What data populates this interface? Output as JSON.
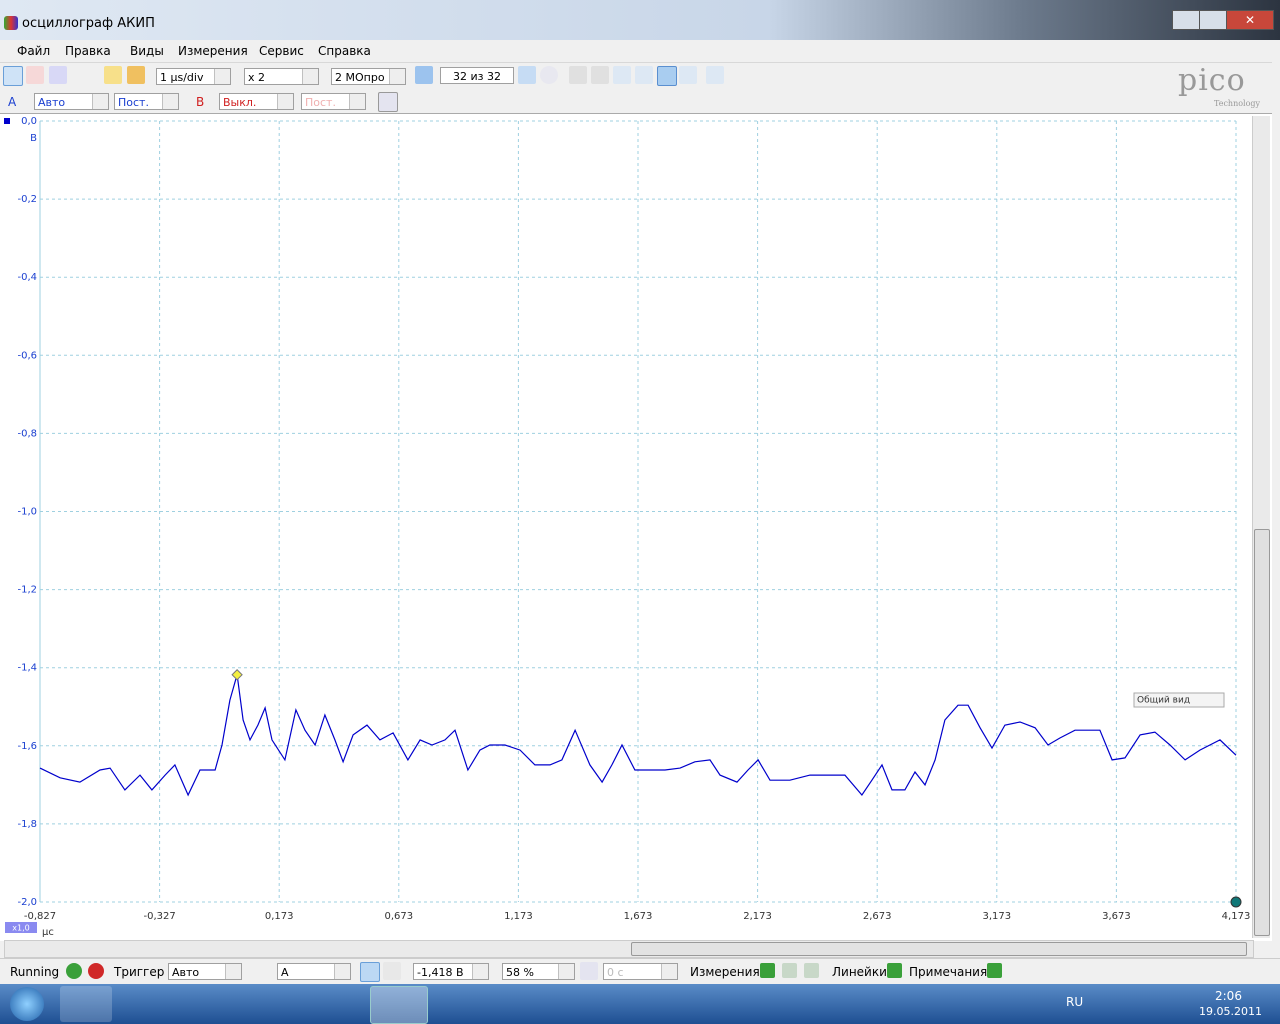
{
  "window": {
    "title": "осциллограф АКИП"
  },
  "menu": [
    "Файл",
    "Правка",
    "Виды",
    "Измерения",
    "Сервис",
    "Справка"
  ],
  "toolbar": {
    "timebase": "1 µs/div",
    "zoom": "x 2",
    "samples": "2 МОпро",
    "buffer": "32 из 32",
    "channel_a": "A",
    "range_a": "Авто",
    "coupling_a": "Пост.",
    "channel_b": "B",
    "range_b": "Выкл.",
    "coupling_b": "Пост.",
    "logo": "pico",
    "logo_sub": "Technology"
  },
  "chart_data": {
    "type": "line",
    "color": "#0000cc",
    "grid": true,
    "x": [
      -0.827,
      -0.743,
      -0.66,
      -0.576,
      -0.534,
      -0.472,
      -0.409,
      -0.359,
      -0.304,
      -0.263,
      -0.208,
      -0.158,
      -0.095,
      -0.066,
      -0.033,
      -0.003,
      0.022,
      0.051,
      0.084,
      0.114,
      0.143,
      0.197,
      0.243,
      0.281,
      0.323,
      0.364,
      0.406,
      0.44,
      0.482,
      0.54,
      0.594,
      0.649,
      0.711,
      0.762,
      0.812,
      0.866,
      0.908,
      0.962,
      1.012,
      1.054,
      1.117,
      1.18,
      1.242,
      1.305,
      1.355,
      1.41,
      1.472,
      1.523,
      1.564,
      1.606,
      1.66,
      1.723,
      1.786,
      1.849,
      1.911,
      1.974,
      2.016,
      2.087,
      2.133,
      2.175,
      2.225,
      2.308,
      2.392,
      2.455,
      2.538,
      2.609,
      2.651,
      2.693,
      2.735,
      2.789,
      2.831,
      2.873,
      2.915,
      2.956,
      3.011,
      3.053,
      3.103,
      3.153,
      3.207,
      3.27,
      3.333,
      3.387,
      3.437,
      3.5,
      3.604,
      3.655,
      3.709,
      3.772,
      3.834,
      3.897,
      3.96,
      4.022,
      4.106,
      4.173
    ],
    "values": [
      -1.657,
      -1.682,
      -1.693,
      -1.662,
      -1.657,
      -1.713,
      -1.675,
      -1.713,
      -1.675,
      -1.649,
      -1.726,
      -1.662,
      -1.662,
      -1.598,
      -1.483,
      -1.418,
      -1.534,
      -1.585,
      -1.547,
      -1.503,
      -1.585,
      -1.636,
      -1.508,
      -1.56,
      -1.598,
      -1.521,
      -1.585,
      -1.641,
      -1.572,
      -1.547,
      -1.585,
      -1.567,
      -1.636,
      -1.585,
      -1.598,
      -1.585,
      -1.56,
      -1.662,
      -1.611,
      -1.598,
      -1.598,
      -1.611,
      -1.649,
      -1.649,
      -1.636,
      -1.56,
      -1.649,
      -1.693,
      -1.649,
      -1.598,
      -1.662,
      -1.662,
      -1.662,
      -1.657,
      -1.641,
      -1.636,
      -1.675,
      -1.693,
      -1.662,
      -1.636,
      -1.688,
      -1.688,
      -1.675,
      -1.675,
      -1.675,
      -1.726,
      -1.688,
      -1.649,
      -1.713,
      -1.713,
      -1.667,
      -1.7,
      -1.636,
      -1.534,
      -1.496,
      -1.496,
      -1.554,
      -1.606,
      -1.547,
      -1.539,
      -1.554,
      -1.598,
      -1.58,
      -1.56,
      -1.56,
      -1.636,
      -1.631,
      -1.572,
      -1.565,
      -1.598,
      -1.636,
      -1.611,
      -1.585,
      -1.624
    ],
    "marker_index": 15,
    "xlim": [
      -0.827,
      4.173
    ],
    "ylim": [
      -2.0,
      0.0
    ],
    "xticks": [
      {
        "value": -0.827,
        "label": "-0,827"
      },
      {
        "value": -0.327,
        "label": "-0,327"
      },
      {
        "value": 0.173,
        "label": "0,173"
      },
      {
        "value": 0.673,
        "label": "0,673"
      },
      {
        "value": 1.173,
        "label": "1,173"
      },
      {
        "value": 1.673,
        "label": "1,673"
      },
      {
        "value": 2.173,
        "label": "2,173"
      },
      {
        "value": 2.673,
        "label": "2,673"
      },
      {
        "value": 3.173,
        "label": "3,173"
      },
      {
        "value": 3.673,
        "label": "3,673"
      },
      {
        "value": 4.173,
        "label": "4,173"
      }
    ],
    "yticks": [
      {
        "value": 0.0,
        "label": "0,0"
      },
      {
        "value": -0.2,
        "label": "-0,2"
      },
      {
        "value": -0.4,
        "label": "-0,4"
      },
      {
        "value": -0.6,
        "label": "-0,6"
      },
      {
        "value": -0.8,
        "label": "-0,8"
      },
      {
        "value": -1.0,
        "label": "-1,0"
      },
      {
        "value": -1.2,
        "label": "-1,2"
      },
      {
        "value": -1.4,
        "label": "-1,4"
      },
      {
        "value": -1.6,
        "label": "-1,6"
      },
      {
        "value": -1.8,
        "label": "-1,8"
      },
      {
        "value": -2.0,
        "label": "-2,0"
      }
    ],
    "x_unit": "μс",
    "y_unit": "В",
    "x_scale": "x1,0",
    "overview": "Общий вид"
  },
  "statusbar": {
    "state": "Running",
    "trigger_label": "Триггер",
    "trigger_mode": "Авто",
    "trigger_channel": "A",
    "trigger_level": "-1,418 В",
    "pretrigger": "58 %",
    "delay": "0 с",
    "measurements": "Измерения",
    "rulers": "Линейки",
    "notes": "Примечания"
  },
  "taskbar": {
    "language": "RU",
    "time": "2:06",
    "date": "19.05.2011"
  }
}
